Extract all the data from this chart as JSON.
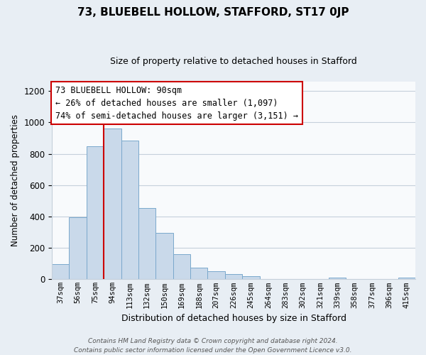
{
  "title": "73, BLUEBELL HOLLOW, STAFFORD, ST17 0JP",
  "subtitle": "Size of property relative to detached houses in Stafford",
  "xlabel": "Distribution of detached houses by size in Stafford",
  "ylabel": "Number of detached properties",
  "bar_labels": [
    "37sqm",
    "56sqm",
    "75sqm",
    "94sqm",
    "113sqm",
    "132sqm",
    "150sqm",
    "169sqm",
    "188sqm",
    "207sqm",
    "226sqm",
    "245sqm",
    "264sqm",
    "283sqm",
    "302sqm",
    "321sqm",
    "339sqm",
    "358sqm",
    "377sqm",
    "396sqm",
    "415sqm"
  ],
  "bar_values": [
    95,
    395,
    848,
    963,
    885,
    455,
    295,
    160,
    72,
    52,
    35,
    18,
    0,
    0,
    0,
    0,
    10,
    0,
    0,
    0,
    10
  ],
  "bar_color": "#c9d9ea",
  "bar_edge_color": "#7aa8cc",
  "vline_color": "#cc0000",
  "annotation_text": "73 BLUEBELL HOLLOW: 90sqm\n← 26% of detached houses are smaller (1,097)\n74% of semi-detached houses are larger (3,151) →",
  "annotation_box_facecolor": "#ffffff",
  "annotation_box_edgecolor": "#cc0000",
  "ylim": [
    0,
    1260
  ],
  "yticks": [
    0,
    200,
    400,
    600,
    800,
    1000,
    1200
  ],
  "footer": "Contains HM Land Registry data © Crown copyright and database right 2024.\nContains public sector information licensed under the Open Government Licence v3.0.",
  "fig_bg_color": "#e8eef4",
  "plot_bg_color": "#f8fafc",
  "grid_color": "#c5d0db",
  "title_fontsize": 11,
  "subtitle_fontsize": 9,
  "ylabel_fontsize": 8.5,
  "xlabel_fontsize": 9
}
